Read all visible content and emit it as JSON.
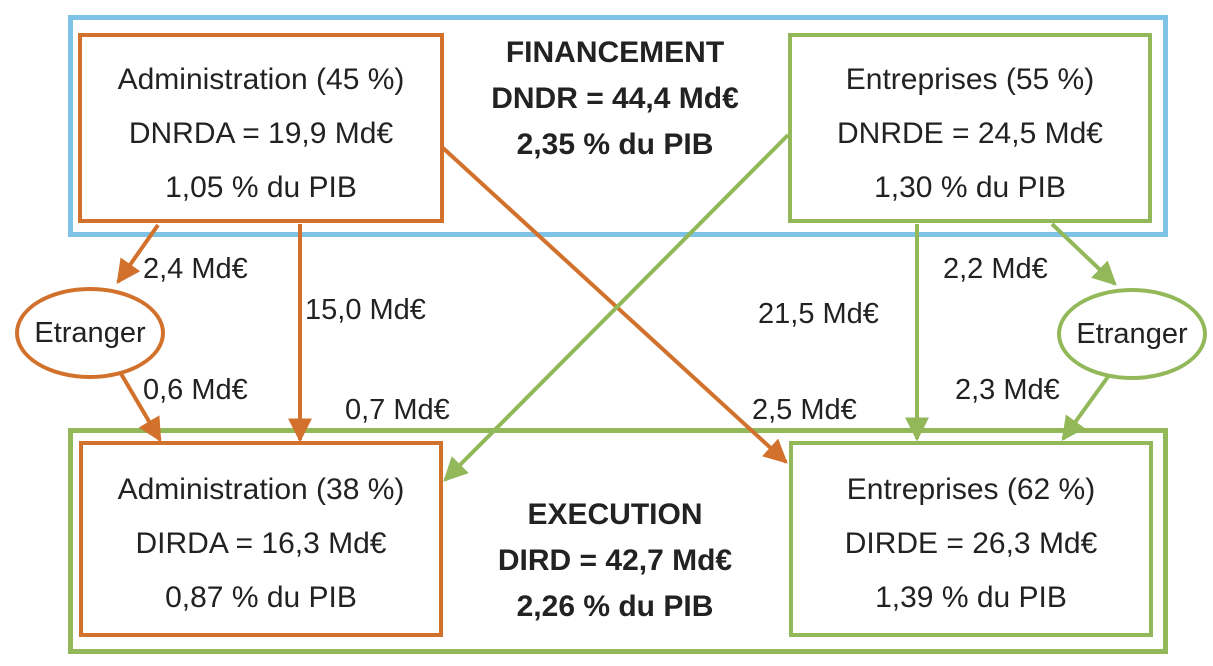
{
  "financement": {
    "title": "FINANCEMENT",
    "total": "DNDR = 44,4 Md€",
    "pib": "2,35 % du PIB",
    "administration": {
      "title": "Administration (45 %)",
      "amount": "DNRDA = 19,9 Md€",
      "pib": "1,05 % du PIB"
    },
    "entreprises": {
      "title": "Entreprises (55 %)",
      "amount": "DNRDE = 24,5 Md€",
      "pib": "1,30 % du PIB"
    }
  },
  "execution": {
    "title": "EXECUTION",
    "total": "DIRD = 42,7 Md€",
    "pib": "2,26 % du PIB",
    "administration": {
      "title": "Administration (38 %)",
      "amount": "DIRDA = 16,3 Md€",
      "pib": "0,87 % du PIB"
    },
    "entreprises": {
      "title": "Entreprises (62 %)",
      "amount": "DIRDE = 26,3 Md€",
      "pib": "1,39 % du PIB"
    }
  },
  "etranger": {
    "left": "Etranger",
    "right": "Etranger"
  },
  "flows": {
    "admin_to_etranger": "2,4 Md€",
    "admin_to_admin": "15,0 Md€",
    "etranger_to_admin": "0,6 Md€",
    "ent_to_admin": "0,7 Md€",
    "ent_to_ent": "21,5 Md€",
    "admin_to_ent": "2,5 Md€",
    "ent_to_etranger": "2,2 Md€",
    "etranger_to_ent": "2,3 Md€"
  },
  "colors": {
    "administration": "#d2712c",
    "entreprises": "#92b85a",
    "financement_frame": "#7ec3e6",
    "execution_frame": "#92b85a"
  }
}
